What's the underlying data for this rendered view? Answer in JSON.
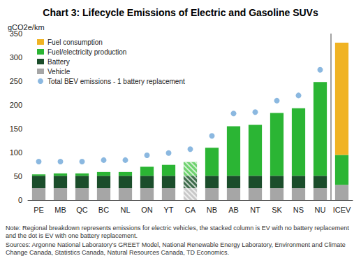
{
  "chart_data": {
    "type": "bar",
    "title": "Chart 3: Lifecycle Emissions of Electric and Gasoline SUVs",
    "y_label": "gCO2e/km",
    "categories": [
      "PE",
      "MB",
      "QC",
      "BC",
      "NL",
      "ON",
      "YT",
      "CA",
      "NB",
      "AB",
      "NT",
      "SK",
      "NS",
      "NU",
      "ICEV"
    ],
    "stacked": true,
    "grid": false,
    "legend": "upper left",
    "ylim": [
      0,
      350
    ],
    "yticks": [
      0,
      50,
      100,
      150,
      200,
      250,
      300,
      350
    ],
    "series": [
      {
        "name": "Vehicle",
        "type": "bar",
        "colors": [
          "#a6a6a6",
          "#a6a6a6",
          "#a6a6a6",
          "#a6a6a6",
          "#a6a6a6",
          "#a6a6a6",
          "#a6a6a6",
          "#c8c8c8",
          "#a6a6a6",
          "#a6a6a6",
          "#a6a6a6",
          "#a6a6a6",
          "#a6a6a6",
          "#a6a6a6",
          "#a6a6a6"
        ],
        "values": [
          25,
          25,
          25,
          25,
          25,
          25,
          25,
          25,
          25,
          25,
          25,
          25,
          25,
          25,
          32
        ]
      },
      {
        "name": "Battery",
        "type": "bar",
        "colors": [
          "#1b4d2b",
          "#1b4d2b",
          "#1b4d2b",
          "#1b4d2b",
          "#1b4d2b",
          "#1b4d2b",
          "#1b4d2b",
          "#3d6b4a",
          "#1b4d2b",
          "#1b4d2b",
          "#1b4d2b",
          "#1b4d2b",
          "#1b4d2b",
          "#1b4d2b",
          "#1b4d2b"
        ],
        "values": [
          26,
          26,
          26,
          26,
          26,
          26,
          26,
          26,
          26,
          26,
          26,
          26,
          26,
          26,
          null
        ]
      },
      {
        "name": "Fuel/electricity production",
        "type": "bar",
        "colors": [
          "#2bb534",
          "#2bb534",
          "#2bb534",
          "#2bb534",
          "#2bb534",
          "#2bb534",
          "#2bb534",
          "#6fd26f",
          "#2bb534",
          "#2bb534",
          "#2bb534",
          "#2bb534",
          "#2bb534",
          "#2bb534",
          "#2bb534"
        ],
        "values": [
          3,
          5,
          5,
          8,
          8,
          19,
          23,
          29,
          59,
          104,
          107,
          132,
          142,
          197,
          63
        ]
      },
      {
        "name": "Fuel consumption",
        "type": "bar",
        "colors": [
          "#f0b323",
          "#f0b323",
          "#f0b323",
          "#f0b323",
          "#f0b323",
          "#f0b323",
          "#f0b323",
          "#f0b323",
          "#f0b323",
          "#f0b323",
          "#f0b323",
          "#f0b323",
          "#f0b323",
          "#f0b323",
          "#f0b323"
        ],
        "values": [
          null,
          null,
          null,
          null,
          null,
          null,
          null,
          null,
          null,
          null,
          null,
          null,
          null,
          null,
          236
        ]
      },
      {
        "name": "Total BEV emissions - 1 battery replacement",
        "type": "scatter",
        "color": "#6ea6d8",
        "marker": "circle",
        "values": [
          81,
          81,
          81,
          84,
          84,
          94,
          99,
          107,
          135,
          182,
          185,
          209,
          220,
          274,
          null
        ]
      }
    ],
    "note": "Note: Regional breakdown represents emissions for electric vehicles, the stacked column is EV with no battery replacement and the dot is EV with one battery replacement.",
    "sources": "Sources: Argonne National Laboratory's GREET Model, National Renewable Energy Laboratory, Environment and Climate Change Canada, Statistics Canada, Natural Resources Canada, TD Economics."
  }
}
